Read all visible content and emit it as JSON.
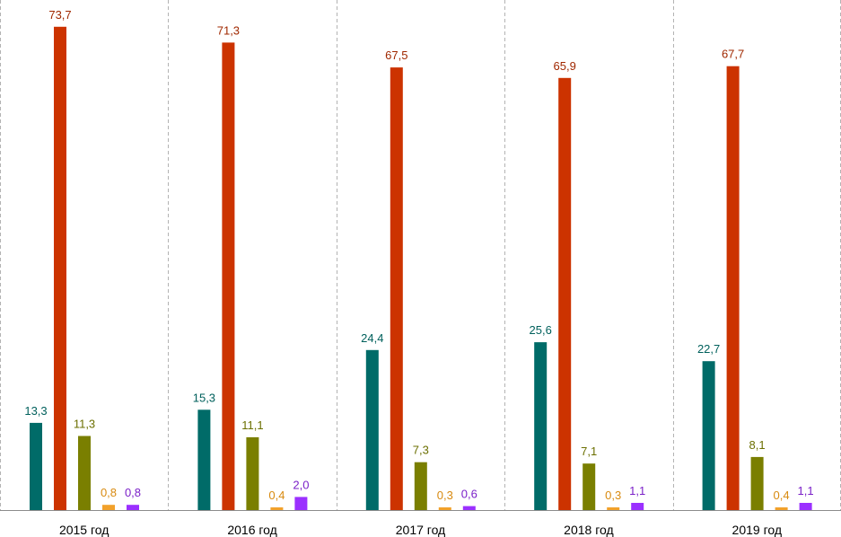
{
  "chart_data": {
    "type": "bar",
    "categories": [
      "2015 год",
      "2016 год",
      "2017 год",
      "2018 год",
      "2019 год"
    ],
    "series": [
      {
        "color": "#006b68",
        "values": [
          13.3,
          15.3,
          24.4,
          25.6,
          22.7
        ],
        "labels": [
          "13,3",
          "15,3",
          "24,4",
          "25,6",
          "22,7"
        ]
      },
      {
        "color": "#cc3300",
        "values": [
          73.7,
          71.3,
          67.5,
          65.9,
          67.7
        ],
        "labels": [
          "73,7",
          "71,3",
          "67,5",
          "65,9",
          "67,7"
        ]
      },
      {
        "color": "#7a7f00",
        "values": [
          11.3,
          11.1,
          7.3,
          7.1,
          8.1
        ],
        "labels": [
          "11,3",
          "11,1",
          "7,3",
          "7,1",
          "8,1"
        ]
      },
      {
        "color": "#f2a12b",
        "values": [
          0.8,
          0.4,
          0.3,
          0.3,
          0.4
        ],
        "labels": [
          "0,8",
          "0,4",
          "0,3",
          "0,3",
          "0,4"
        ]
      },
      {
        "color": "#9b30ff",
        "values": [
          0.8,
          2.0,
          0.6,
          1.1,
          1.1
        ],
        "labels": [
          "0,8",
          "2,0",
          "0,6",
          "1,1",
          "1,1"
        ]
      }
    ],
    "label_colors": [
      "#00605c",
      "#a02800",
      "#6b6f00",
      "#d88a10",
      "#7a1fc8"
    ],
    "ylim": [
      0,
      74.5
    ],
    "grid": "vertical-dashed",
    "legend": "none",
    "title": "",
    "xlabel": "",
    "ylabel": ""
  }
}
